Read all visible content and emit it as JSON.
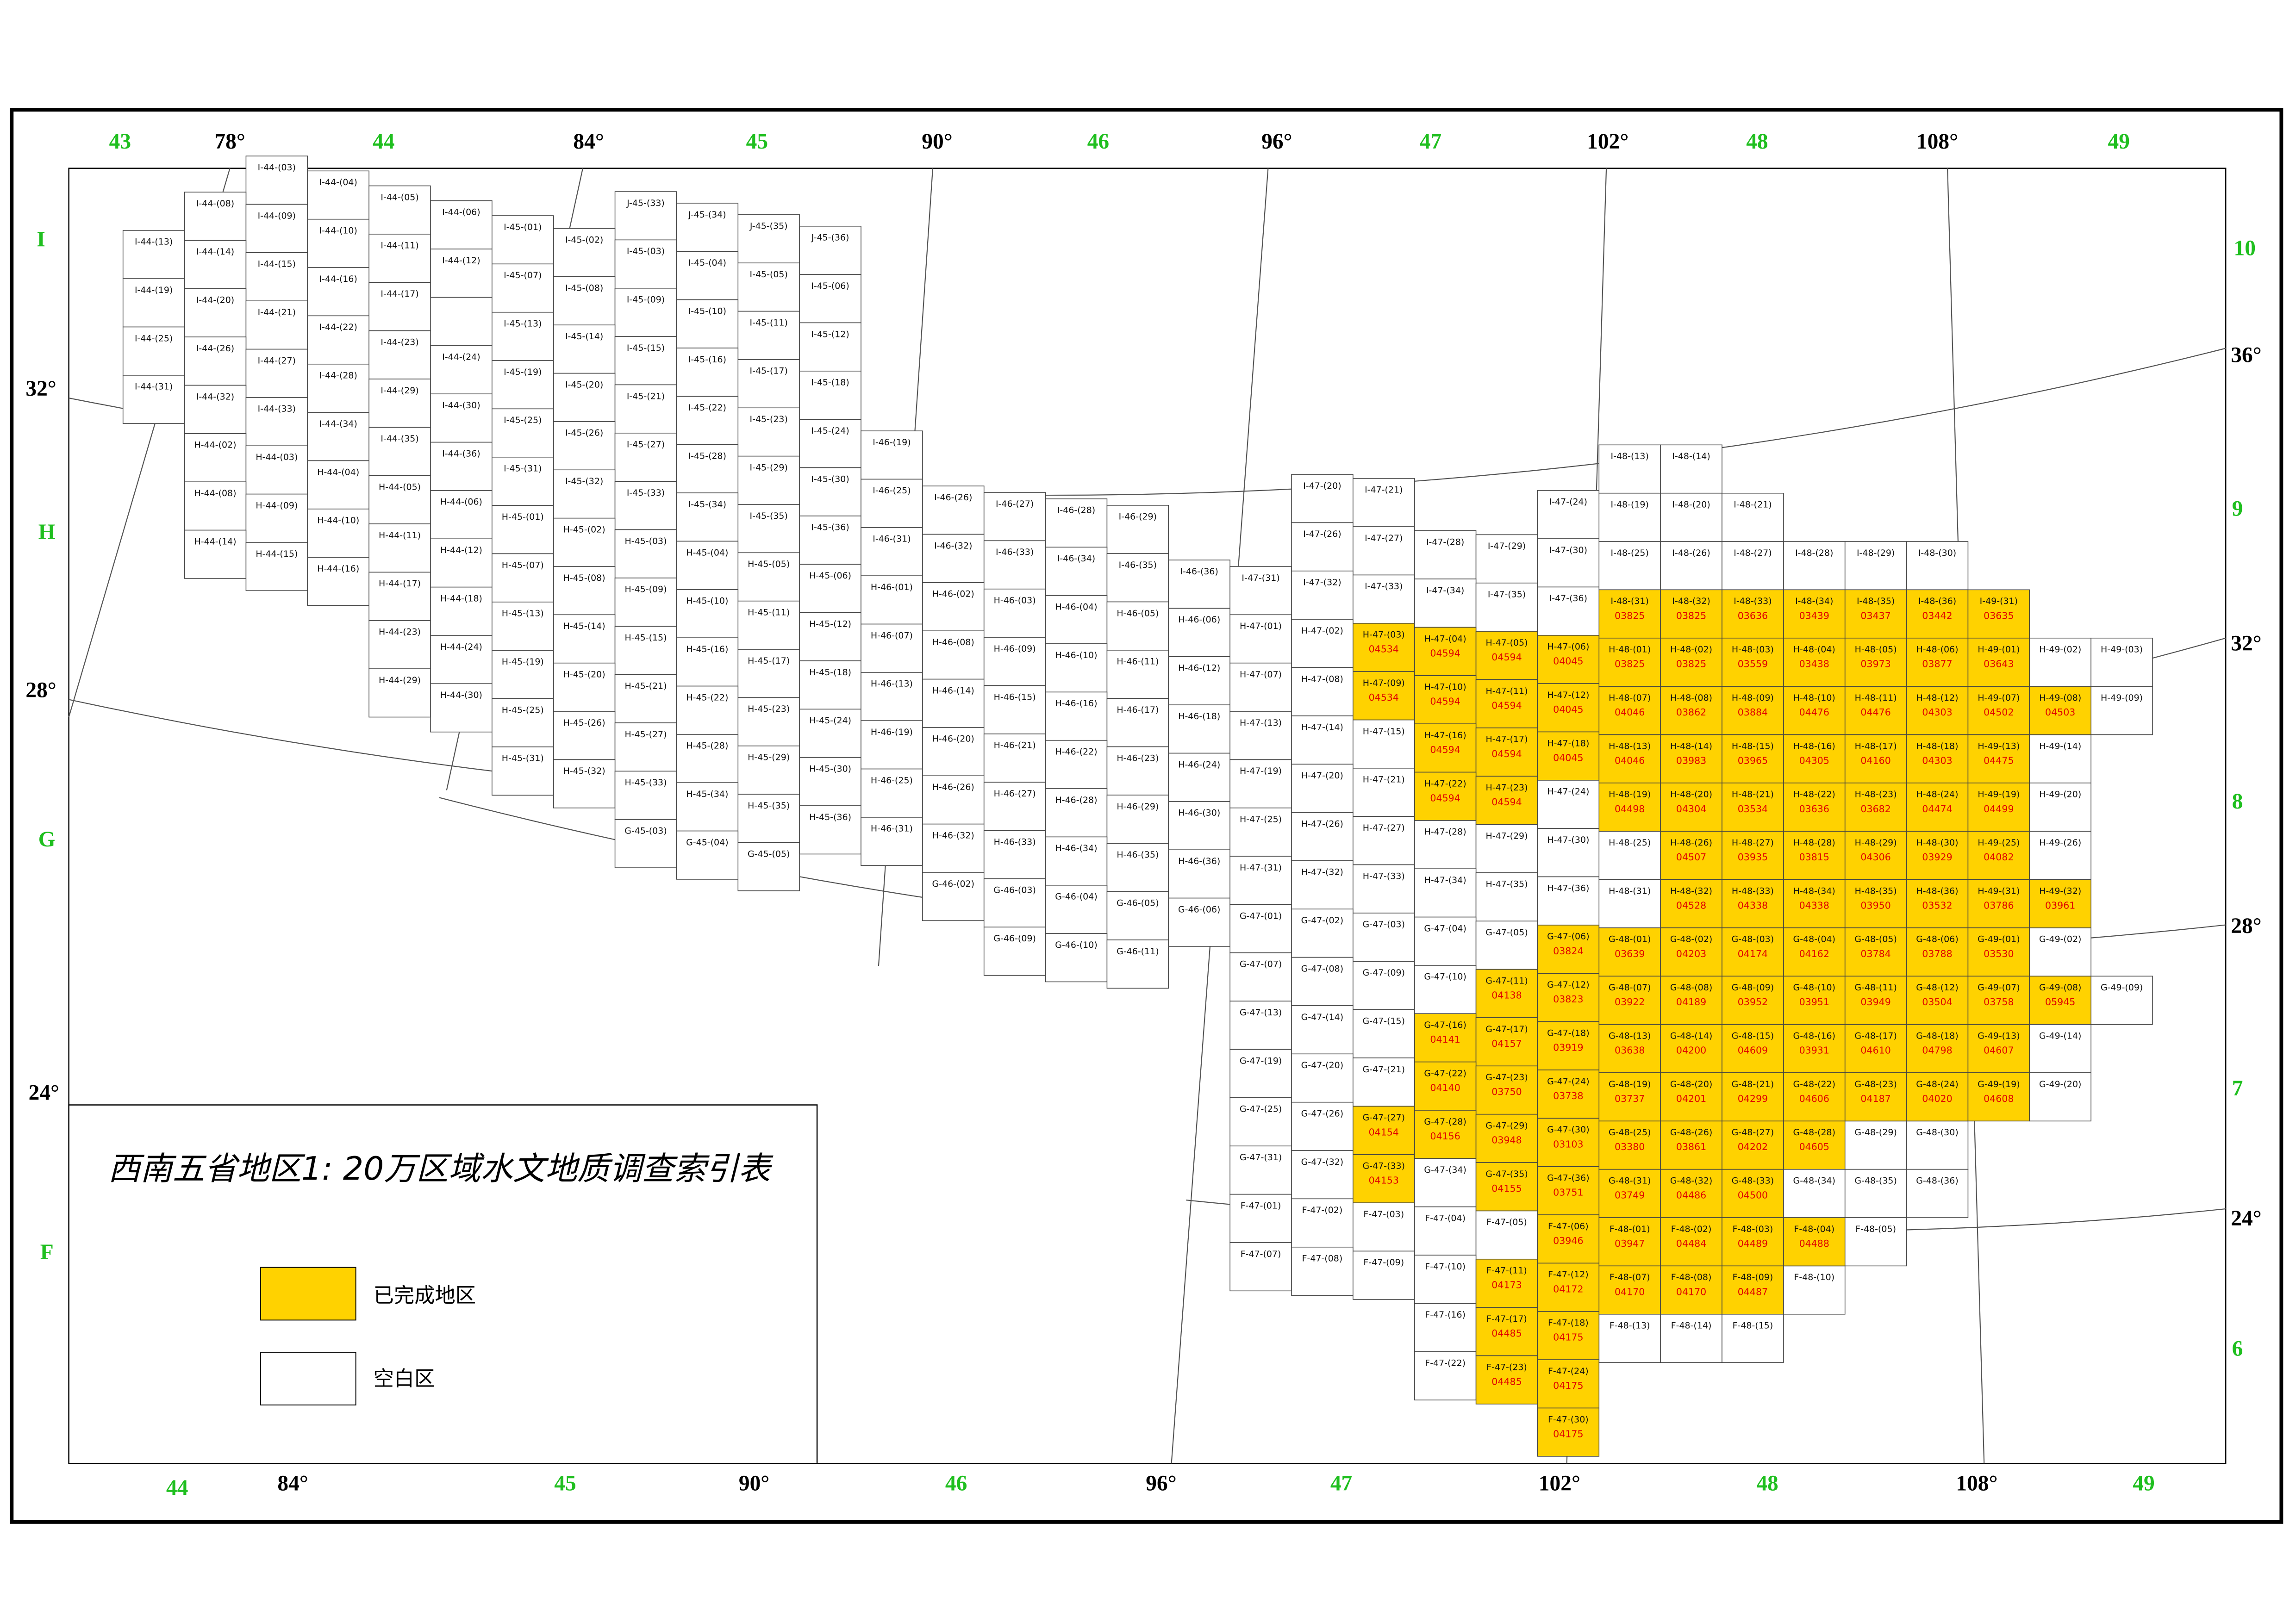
{
  "title": "西南五省地区1: 20万区域水文地质调查索引表",
  "legend": {
    "completed": "已完成地区",
    "blank": "空白区"
  },
  "labels": {
    "top": [
      "43",
      "78°",
      "44",
      "84°",
      "45",
      "90°",
      "46",
      "96°",
      "47",
      "102°",
      "48",
      "108°",
      "49"
    ],
    "bottom": [
      "44",
      "84°",
      "45",
      "90°",
      "46",
      "96°",
      "47",
      "102°",
      "48",
      "108°",
      "49"
    ],
    "left": [
      "I",
      "32°",
      "H",
      "28°",
      "G",
      "24°",
      "F"
    ],
    "right": [
      "10",
      "36°",
      "9",
      "32°",
      "8",
      "28°",
      "7",
      "24°",
      "6"
    ]
  },
  "sheets": {
    "blank": [
      "J-45-(33)",
      "J-45-(34)",
      "J-45-(35)",
      "J-45-(36)",
      "I-44-(03)",
      "I-44-(04)",
      "I-44-(05)",
      "I-44-(06)",
      "I-44-(08)",
      "I-44-(09)",
      "I-44-(10)",
      "I-44-(11)",
      "I-44-(12)",
      "I-44-(13)",
      "I-44-(14)",
      "I-44-(15)",
      "I-44-(16)",
      "I-44-(17)",
      "I-44-(19)",
      "I-44-(20)",
      "I-44-(21)",
      "I-44-(22)",
      "I-44-(23)",
      "I-44-(24)",
      "I-44-(25)",
      "I-44-(26)",
      "I-44-(27)",
      "I-44-(28)",
      "I-44-(29)",
      "I-44-(30)",
      "I-44-(31)",
      "I-44-(32)",
      "I-44-(33)",
      "I-44-(34)",
      "I-44-(35)",
      "I-44-(36)",
      "H-44-(02)",
      "H-44-(03)",
      "H-44-(04)",
      "H-44-(05)",
      "H-44-(06)",
      "H-44-(08)",
      "H-44-(09)",
      "H-44-(10)",
      "H-44-(11)",
      "H-44-(12)",
      "H-44-(14)",
      "H-44-(15)",
      "H-44-(16)",
      "H-44-(17)",
      "H-44-(18)",
      "H-44-(23)",
      "H-44-(24)",
      "H-44-(29)",
      "H-44-(30)",
      "I-45-(01)",
      "I-45-(02)",
      "I-45-(03)",
      "I-45-(04)",
      "I-45-(05)",
      "I-45-(06)",
      "I-45-(07)",
      "I-45-(08)",
      "I-45-(09)",
      "I-45-(10)",
      "I-45-(11)",
      "I-45-(12)",
      "I-45-(13)",
      "I-45-(14)",
      "I-45-(15)",
      "I-45-(16)",
      "I-45-(17)",
      "I-45-(18)",
      "I-45-(19)",
      "I-45-(20)",
      "I-45-(21)",
      "I-45-(22)",
      "I-45-(23)",
      "I-45-(24)",
      "I-45-(25)",
      "I-45-(26)",
      "I-45-(27)",
      "I-45-(28)",
      "I-45-(29)",
      "I-45-(30)",
      "I-45-(31)",
      "I-45-(32)",
      "I-45-(33)",
      "I-45-(34)",
      "I-45-(35)",
      "I-45-(36)",
      "H-45-(01)",
      "H-45-(02)",
      "H-45-(03)",
      "H-45-(04)",
      "H-45-(05)",
      "H-45-(06)",
      "H-45-(07)",
      "H-45-(08)",
      "H-45-(09)",
      "H-45-(10)",
      "H-45-(11)",
      "H-45-(12)",
      "H-45-(13)",
      "H-45-(14)",
      "H-45-(15)",
      "H-45-(16)",
      "H-45-(17)",
      "H-45-(18)",
      "H-45-(19)",
      "H-45-(20)",
      "H-45-(21)",
      "H-45-(22)",
      "H-45-(23)",
      "H-45-(24)",
      "H-45-(25)",
      "H-45-(26)",
      "H-45-(27)",
      "H-45-(28)",
      "H-45-(29)",
      "H-45-(30)",
      "H-45-(31)",
      "H-45-(32)",
      "H-45-(33)",
      "H-45-(34)",
      "H-45-(35)",
      "H-45-(36)",
      "G-45-(03)",
      "G-45-(04)",
      "G-45-(05)",
      "I-46-(19)",
      "I-46-(25)",
      "I-46-(26)",
      "I-46-(27)",
      "I-46-(28)",
      "I-46-(29)",
      "I-46-(31)",
      "I-46-(32)",
      "I-46-(33)",
      "I-46-(34)",
      "I-46-(35)",
      "I-46-(36)",
      "H-46-(01)",
      "H-46-(02)",
      "H-46-(03)",
      "H-46-(04)",
      "H-46-(05)",
      "H-46-(06)",
      "H-46-(07)",
      "H-46-(08)",
      "H-46-(09)",
      "H-46-(10)",
      "H-46-(11)",
      "H-46-(12)",
      "H-46-(13)",
      "H-46-(14)",
      "H-46-(15)",
      "H-46-(16)",
      "H-46-(17)",
      "H-46-(18)",
      "H-46-(19)",
      "H-46-(20)",
      "H-46-(21)",
      "H-46-(22)",
      "H-46-(23)",
      "H-46-(24)",
      "H-46-(25)",
      "H-46-(26)",
      "H-46-(27)",
      "H-46-(28)",
      "H-46-(29)",
      "H-46-(30)",
      "H-46-(31)",
      "H-46-(32)",
      "H-46-(33)",
      "H-46-(34)",
      "H-46-(35)",
      "H-46-(36)",
      "G-46-(02)",
      "G-46-(03)",
      "G-46-(04)",
      "G-46-(05)",
      "G-46-(06)",
      "G-46-(09)",
      "G-46-(10)",
      "G-46-(11)",
      "I-47-(20)",
      "I-47-(21)",
      "I-47-(24)",
      "I-47-(26)",
      "I-47-(27)",
      "I-47-(28)",
      "I-47-(29)",
      "I-47-(30)",
      "I-47-(31)",
      "I-47-(32)",
      "I-47-(33)",
      "I-47-(34)",
      "I-47-(35)",
      "I-47-(36)",
      "I-48-(13)",
      "I-48-(14)",
      "I-48-(19)",
      "I-48-(20)",
      "I-48-(21)",
      "I-48-(25)",
      "I-48-(26)",
      "I-48-(27)",
      "I-48-(28)",
      "I-48-(29)",
      "I-48-(30)",
      "H-47-(01)",
      "H-47-(02)",
      "H-47-(07)",
      "H-47-(08)",
      "H-47-(13)",
      "H-47-(14)",
      "H-47-(15)",
      "H-47-(19)",
      "H-47-(20)",
      "H-47-(21)",
      "H-47-(24)",
      "H-47-(25)",
      "H-47-(26)",
      "H-47-(27)",
      "H-47-(28)",
      "H-47-(29)",
      "H-47-(30)",
      "H-47-(31)",
      "H-47-(32)",
      "H-47-(33)",
      "H-47-(34)",
      "H-47-(35)",
      "H-47-(36)",
      "H-48-(25)",
      "H-48-(31)",
      "H-49-(02)",
      "H-49-(03)",
      "H-49-(09)",
      "H-49-(14)",
      "H-49-(20)",
      "H-49-(26)",
      "G-47-(01)",
      "G-47-(02)",
      "G-47-(03)",
      "G-47-(04)",
      "G-47-(05)",
      "G-47-(07)",
      "G-47-(08)",
      "G-47-(09)",
      "G-47-(10)",
      "G-47-(13)",
      "G-47-(14)",
      "G-47-(15)",
      "G-47-(19)",
      "G-47-(20)",
      "G-47-(21)",
      "G-47-(25)",
      "G-47-(26)",
      "G-47-(31)",
      "G-47-(32)",
      "G-47-(34)",
      "G-48-(29)",
      "G-48-(30)",
      "G-48-(34)",
      "G-48-(35)",
      "G-48-(36)",
      "G-49-(02)",
      "G-49-(09)",
      "G-49-(14)",
      "G-49-(20)",
      "F-47-(01)",
      "F-47-(02)",
      "F-47-(03)",
      "F-47-(04)",
      "F-47-(05)",
      "F-47-(07)",
      "F-47-(08)",
      "F-47-(09)",
      "F-47-(10)",
      "F-47-(16)",
      "F-47-(22)",
      "F-48-(05)",
      "F-48-(10)",
      "F-48-(13)",
      "F-48-(14)",
      "F-48-(15)"
    ],
    "completed": [
      {
        "id": "I-48-(31)",
        "code": "03825"
      },
      {
        "id": "I-48-(32)",
        "code": "03825"
      },
      {
        "id": "I-48-(33)",
        "code": "03636"
      },
      {
        "id": "I-48-(34)",
        "code": "03439"
      },
      {
        "id": "I-48-(35)",
        "code": "03437"
      },
      {
        "id": "I-48-(36)",
        "code": "03442"
      },
      {
        "id": "I-49-(31)",
        "code": "03635"
      },
      {
        "id": "H-47-(03)",
        "code": "04534"
      },
      {
        "id": "H-47-(04)",
        "code": "04594"
      },
      {
        "id": "H-47-(05)",
        "code": "04594"
      },
      {
        "id": "H-47-(06)",
        "code": "04045"
      },
      {
        "id": "H-47-(09)",
        "code": "04534"
      },
      {
        "id": "H-47-(10)",
        "code": "04594"
      },
      {
        "id": "H-47-(11)",
        "code": "04594"
      },
      {
        "id": "H-47-(12)",
        "code": "04045"
      },
      {
        "id": "H-47-(16)",
        "code": "04594"
      },
      {
        "id": "H-47-(17)",
        "code": "04594"
      },
      {
        "id": "H-47-(18)",
        "code": "04045"
      },
      {
        "id": "H-47-(22)",
        "code": "04594"
      },
      {
        "id": "H-47-(23)",
        "code": "04594"
      },
      {
        "id": "H-48-(01)",
        "code": "03825"
      },
      {
        "id": "H-48-(02)",
        "code": "03825"
      },
      {
        "id": "H-48-(03)",
        "code": "03559"
      },
      {
        "id": "H-48-(04)",
        "code": "03438"
      },
      {
        "id": "H-48-(05)",
        "code": "03973"
      },
      {
        "id": "H-48-(06)",
        "code": "03877"
      },
      {
        "id": "H-48-(07)",
        "code": "04046"
      },
      {
        "id": "H-48-(08)",
        "code": "03862"
      },
      {
        "id": "H-48-(09)",
        "code": "03884"
      },
      {
        "id": "H-48-(10)",
        "code": "04476"
      },
      {
        "id": "H-48-(11)",
        "code": "04476"
      },
      {
        "id": "H-48-(12)",
        "code": "04303"
      },
      {
        "id": "H-48-(13)",
        "code": "04046"
      },
      {
        "id": "H-48-(14)",
        "code": "03983"
      },
      {
        "id": "H-48-(15)",
        "code": "03965"
      },
      {
        "id": "H-48-(16)",
        "code": "04305"
      },
      {
        "id": "H-48-(17)",
        "code": "04160"
      },
      {
        "id": "H-48-(18)",
        "code": "04303"
      },
      {
        "id": "H-48-(19)",
        "code": "04498"
      },
      {
        "id": "H-48-(20)",
        "code": "04304"
      },
      {
        "id": "H-48-(21)",
        "code": "03534"
      },
      {
        "id": "H-48-(22)",
        "code": "03636"
      },
      {
        "id": "H-48-(23)",
        "code": "03682"
      },
      {
        "id": "H-48-(24)",
        "code": "04474"
      },
      {
        "id": "H-48-(26)",
        "code": "04507"
      },
      {
        "id": "H-48-(27)",
        "code": "03935"
      },
      {
        "id": "H-48-(28)",
        "code": "03815"
      },
      {
        "id": "H-48-(29)",
        "code": "04306"
      },
      {
        "id": "H-48-(30)",
        "code": "03929"
      },
      {
        "id": "H-48-(32)",
        "code": "04528"
      },
      {
        "id": "H-48-(33)",
        "code": "04338"
      },
      {
        "id": "H-48-(34)",
        "code": "04338"
      },
      {
        "id": "H-48-(35)",
        "code": "03950"
      },
      {
        "id": "H-48-(36)",
        "code": "03532"
      },
      {
        "id": "H-49-(01)",
        "code": "03643"
      },
      {
        "id": "H-49-(07)",
        "code": "04502"
      },
      {
        "id": "H-49-(08)",
        "code": "04503"
      },
      {
        "id": "H-49-(13)",
        "code": "04475"
      },
      {
        "id": "H-49-(19)",
        "code": "04499"
      },
      {
        "id": "H-49-(25)",
        "code": "04082"
      },
      {
        "id": "H-49-(31)",
        "code": "03786"
      },
      {
        "id": "H-49-(32)",
        "code": "03961"
      },
      {
        "id": "G-47-(06)",
        "code": "03824"
      },
      {
        "id": "G-47-(11)",
        "code": "04138"
      },
      {
        "id": "G-47-(12)",
        "code": "03823"
      },
      {
        "id": "G-47-(16)",
        "code": "04141"
      },
      {
        "id": "G-47-(17)",
        "code": "04157"
      },
      {
        "id": "G-47-(18)",
        "code": "03919"
      },
      {
        "id": "G-47-(22)",
        "code": "04140"
      },
      {
        "id": "G-47-(23)",
        "code": "03750"
      },
      {
        "id": "G-47-(24)",
        "code": "03738"
      },
      {
        "id": "G-47-(27)",
        "code": "04154"
      },
      {
        "id": "G-47-(28)",
        "code": "04156"
      },
      {
        "id": "G-47-(29)",
        "code": "03948"
      },
      {
        "id": "G-47-(30)",
        "code": "03103"
      },
      {
        "id": "G-47-(33)",
        "code": "04153"
      },
      {
        "id": "G-47-(35)",
        "code": "04155"
      },
      {
        "id": "G-47-(36)",
        "code": "03751"
      },
      {
        "id": "G-48-(01)",
        "code": "03639"
      },
      {
        "id": "G-48-(02)",
        "code": "04203"
      },
      {
        "id": "G-48-(03)",
        "code": "04174"
      },
      {
        "id": "G-48-(04)",
        "code": "04162"
      },
      {
        "id": "G-48-(05)",
        "code": "03784"
      },
      {
        "id": "G-48-(06)",
        "code": "03788"
      },
      {
        "id": "G-48-(07)",
        "code": "03922"
      },
      {
        "id": "G-48-(08)",
        "code": "04189"
      },
      {
        "id": "G-48-(09)",
        "code": "03952"
      },
      {
        "id": "G-48-(10)",
        "code": "03951"
      },
      {
        "id": "G-48-(11)",
        "code": "03949"
      },
      {
        "id": "G-48-(12)",
        "code": "03504"
      },
      {
        "id": "G-48-(13)",
        "code": "03638"
      },
      {
        "id": "G-48-(14)",
        "code": "04200"
      },
      {
        "id": "G-48-(15)",
        "code": "04609"
      },
      {
        "id": "G-48-(16)",
        "code": "03931"
      },
      {
        "id": "G-48-(17)",
        "code": "04610"
      },
      {
        "id": "G-48-(18)",
        "code": "04798"
      },
      {
        "id": "G-48-(19)",
        "code": "03737"
      },
      {
        "id": "G-48-(20)",
        "code": "04201"
      },
      {
        "id": "G-48-(21)",
        "code": "04299"
      },
      {
        "id": "G-48-(22)",
        "code": "04606"
      },
      {
        "id": "G-48-(23)",
        "code": "04187"
      },
      {
        "id": "G-48-(24)",
        "code": "04020"
      },
      {
        "id": "G-48-(25)",
        "code": "03380"
      },
      {
        "id": "G-48-(26)",
        "code": "03861"
      },
      {
        "id": "G-48-(27)",
        "code": "04202"
      },
      {
        "id": "G-48-(28)",
        "code": "04605"
      },
      {
        "id": "G-48-(31)",
        "code": "03749"
      },
      {
        "id": "G-48-(32)",
        "code": "04486"
      },
      {
        "id": "G-48-(33)",
        "code": "04500"
      },
      {
        "id": "G-49-(01)",
        "code": "03530"
      },
      {
        "id": "G-49-(07)",
        "code": "03758"
      },
      {
        "id": "G-49-(08)",
        "code": "05945"
      },
      {
        "id": "G-49-(13)",
        "code": "04607"
      },
      {
        "id": "G-49-(19)",
        "code": "04608"
      },
      {
        "id": "F-47-(06)",
        "code": "03946"
      },
      {
        "id": "F-47-(11)",
        "code": "04173"
      },
      {
        "id": "F-47-(12)",
        "code": "04172"
      },
      {
        "id": "F-47-(17)",
        "code": "04485"
      },
      {
        "id": "F-47-(18)",
        "code": "04175"
      },
      {
        "id": "F-47-(23)",
        "code": "04485"
      },
      {
        "id": "F-47-(24)",
        "code": "04175"
      },
      {
        "id": "F-47-(30)",
        "code": "04175"
      },
      {
        "id": "F-48-(01)",
        "code": "03947"
      },
      {
        "id": "F-48-(02)",
        "code": "04484"
      },
      {
        "id": "F-48-(03)",
        "code": "04489"
      },
      {
        "id": "F-48-(04)",
        "code": "04488"
      },
      {
        "id": "F-48-(07)",
        "code": "04170"
      },
      {
        "id": "F-48-(08)",
        "code": "04170"
      },
      {
        "id": "F-48-(09)",
        "code": "04487"
      }
    ]
  }
}
